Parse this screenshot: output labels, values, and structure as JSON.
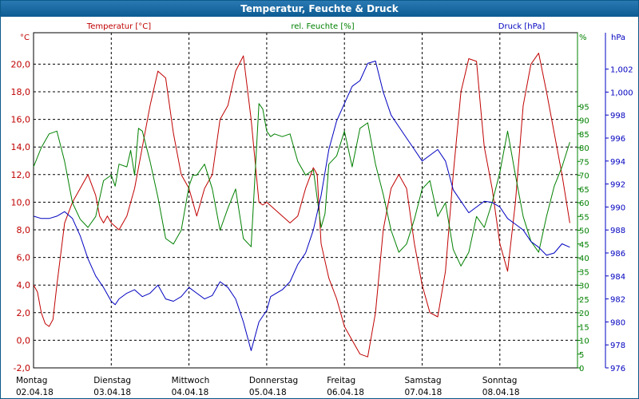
{
  "window": {
    "title": "Temperatur, Feuchte & Druck"
  },
  "colors": {
    "temperature": "#c00000",
    "humidity": "#008000",
    "pressure": "#0000c0",
    "grid": "#000000",
    "title_bg": "#1a6aa5"
  },
  "chart_data": {
    "type": "line",
    "title": "Temperatur, Feuchte & Druck",
    "grid": true,
    "legend": "top",
    "x_ticks": [
      {
        "day": "Montag",
        "date": "02.04.18"
      },
      {
        "day": "Dienstag",
        "date": "03.04.18"
      },
      {
        "day": "Mittwoch",
        "date": "04.04.18"
      },
      {
        "day": "Donnerstag",
        "date": "05.04.18"
      },
      {
        "day": "Freitag",
        "date": "06.04.18"
      },
      {
        "day": "Samstag",
        "date": "07.04.18"
      },
      {
        "day": "Sonntag",
        "date": "08.04.18"
      }
    ],
    "x_range": [
      0,
      7.15
    ],
    "axes": {
      "temperature": {
        "unit": "°C",
        "ylim": [
          -2,
          22
        ],
        "ticks": [
          "20,0",
          "18,0",
          "16,0",
          "14,0",
          "12,0",
          "10,0",
          "8,0",
          "6,0",
          "4,0",
          "2,0",
          "0,0",
          "-2,0"
        ],
        "tick_values": [
          20,
          18,
          16,
          14,
          12,
          10,
          8,
          6,
          4,
          2,
          0,
          -2
        ]
      },
      "humidity": {
        "unit": "%",
        "ylim": [
          0,
          97.5
        ],
        "ticks": [
          "95",
          "90",
          "85",
          "80",
          "75",
          "70",
          "65",
          "60",
          "55",
          "50",
          "45",
          "40",
          "35",
          "30",
          "25",
          "20",
          "15",
          "10",
          "5",
          "0"
        ],
        "tick_values": [
          95,
          90,
          85,
          80,
          75,
          70,
          65,
          60,
          55,
          50,
          45,
          40,
          35,
          30,
          25,
          20,
          15,
          10,
          5,
          0
        ]
      },
      "pressure": {
        "unit": "hPa",
        "ylim": [
          976,
          1005.2
        ],
        "ticks": [
          "1,002",
          "1,000",
          "998",
          "996",
          "994",
          "992",
          "990",
          "988",
          "986",
          "984",
          "982",
          "980",
          "978",
          "976"
        ],
        "tick_values": [
          1002,
          1000,
          998,
          996,
          994,
          992,
          990,
          988,
          986,
          984,
          982,
          980,
          978,
          976
        ]
      }
    },
    "series": [
      {
        "name": "Temperatur [°C]",
        "axis": "temperature",
        "x": [
          0,
          0.05,
          0.1,
          0.15,
          0.2,
          0.25,
          0.3,
          0.4,
          0.5,
          0.6,
          0.7,
          0.8,
          0.85,
          0.9,
          0.95,
          1.0,
          1.1,
          1.2,
          1.3,
          1.4,
          1.5,
          1.6,
          1.7,
          1.8,
          1.9,
          2.0,
          2.1,
          2.2,
          2.3,
          2.4,
          2.5,
          2.6,
          2.7,
          2.8,
          2.9,
          2.95,
          3.0,
          3.1,
          3.2,
          3.3,
          3.4,
          3.5,
          3.6,
          3.65,
          3.7,
          3.8,
          3.9,
          4.0,
          4.1,
          4.2,
          4.3,
          4.4,
          4.5,
          4.6,
          4.7,
          4.8,
          4.9,
          5.0,
          5.1,
          5.2,
          5.3,
          5.4,
          5.5,
          5.6,
          5.7,
          5.75,
          5.8,
          5.9,
          6.0,
          6.1,
          6.2,
          6.3,
          6.4,
          6.5,
          6.6,
          6.7,
          6.8,
          6.9
        ],
        "values": [
          4,
          3.5,
          2,
          1.2,
          1,
          1.5,
          4,
          8.5,
          10,
          11,
          12,
          10.5,
          9,
          8.5,
          9,
          8.5,
          8,
          9,
          11,
          14,
          17,
          19.5,
          19,
          15,
          12,
          11,
          9,
          11,
          12,
          16,
          17,
          19.5,
          20.6,
          16,
          10,
          9.8,
          10,
          9.5,
          9,
          8.5,
          9,
          11,
          12.5,
          12,
          7,
          4.5,
          3,
          1,
          0,
          -1,
          -1.2,
          2,
          8,
          11,
          12,
          11,
          7,
          4,
          2,
          1.7,
          5,
          12,
          18,
          20.4,
          20.2,
          17,
          14,
          11,
          7,
          5,
          10,
          17,
          20,
          20.8,
          18,
          15,
          12,
          8.5
        ]
      },
      {
        "name": "rel. Feuchte [%]",
        "axis": "humidity",
        "x": [
          0,
          0.1,
          0.2,
          0.3,
          0.4,
          0.5,
          0.6,
          0.7,
          0.8,
          0.9,
          1.0,
          1.05,
          1.1,
          1.2,
          1.25,
          1.3,
          1.35,
          1.4,
          1.5,
          1.6,
          1.7,
          1.8,
          1.9,
          2.0,
          2.05,
          2.1,
          2.2,
          2.3,
          2.4,
          2.5,
          2.6,
          2.7,
          2.8,
          2.9,
          2.95,
          3.0,
          3.05,
          3.1,
          3.2,
          3.3,
          3.4,
          3.5,
          3.6,
          3.7,
          3.75,
          3.8,
          3.9,
          4.0,
          4.1,
          4.2,
          4.3,
          4.4,
          4.5,
          4.6,
          4.7,
          4.8,
          4.9,
          5.0,
          5.1,
          5.2,
          5.3,
          5.4,
          5.5,
          5.6,
          5.7,
          5.8,
          5.9,
          6.0,
          6.1,
          6.2,
          6.3,
          6.4,
          6.5,
          6.6,
          6.7,
          6.8,
          6.9
        ],
        "values": [
          73,
          80,
          85,
          86,
          75,
          60,
          54,
          51,
          55,
          68,
          70,
          66,
          74,
          73,
          79,
          70,
          87,
          86,
          75,
          62,
          47,
          45,
          50,
          66,
          70,
          70,
          74,
          65,
          50,
          58,
          65,
          47,
          44,
          96,
          94,
          86,
          84,
          85,
          84,
          85,
          75,
          70,
          72,
          51,
          56,
          74,
          77,
          86,
          73,
          87,
          89,
          74,
          63,
          50,
          42,
          45,
          54,
          65,
          68,
          55,
          60,
          43,
          37,
          42,
          55,
          51,
          60,
          71,
          86,
          70,
          55,
          46,
          42,
          55,
          66,
          73,
          82
        ]
      },
      {
        "name": "Druck [hPa]",
        "axis": "pressure",
        "x": [
          0,
          0.1,
          0.2,
          0.3,
          0.4,
          0.5,
          0.6,
          0.7,
          0.8,
          0.9,
          1.0,
          1.05,
          1.1,
          1.2,
          1.3,
          1.4,
          1.5,
          1.6,
          1.7,
          1.8,
          1.9,
          2.0,
          2.1,
          2.2,
          2.3,
          2.4,
          2.5,
          2.6,
          2.7,
          2.8,
          2.9,
          3.0,
          3.05,
          3.1,
          3.2,
          3.3,
          3.4,
          3.5,
          3.6,
          3.7,
          3.8,
          3.9,
          4.0,
          4.1,
          4.2,
          4.3,
          4.4,
          4.5,
          4.6,
          4.7,
          4.8,
          4.9,
          5.0,
          5.1,
          5.2,
          5.3,
          5.4,
          5.5,
          5.6,
          5.7,
          5.8,
          5.9,
          6.0,
          6.1,
          6.2,
          6.3,
          6.4,
          6.5,
          6.6,
          6.7,
          6.8,
          6.9
        ],
        "values": [
          989.2,
          989,
          989,
          989.2,
          989.6,
          989,
          987.5,
          985.5,
          984,
          983,
          981.8,
          981.5,
          982,
          982.5,
          982.8,
          982.2,
          982.5,
          983.2,
          982,
          981.8,
          982.2,
          983,
          982.5,
          982,
          982.3,
          983.5,
          983,
          982,
          980,
          977.5,
          980,
          981,
          982.2,
          982.4,
          982.8,
          983.5,
          985,
          986,
          988,
          991,
          995,
          997.5,
          999,
          1000.5,
          1001,
          1002.5,
          1002.7,
          1000,
          998,
          997,
          996,
          995,
          994,
          994.5,
          995,
          994,
          991.5,
          990.5,
          989.5,
          990,
          990.5,
          990.4,
          990,
          989,
          988.5,
          988,
          987,
          986.5,
          985.8,
          986,
          986.8,
          986.5
        ]
      }
    ]
  }
}
